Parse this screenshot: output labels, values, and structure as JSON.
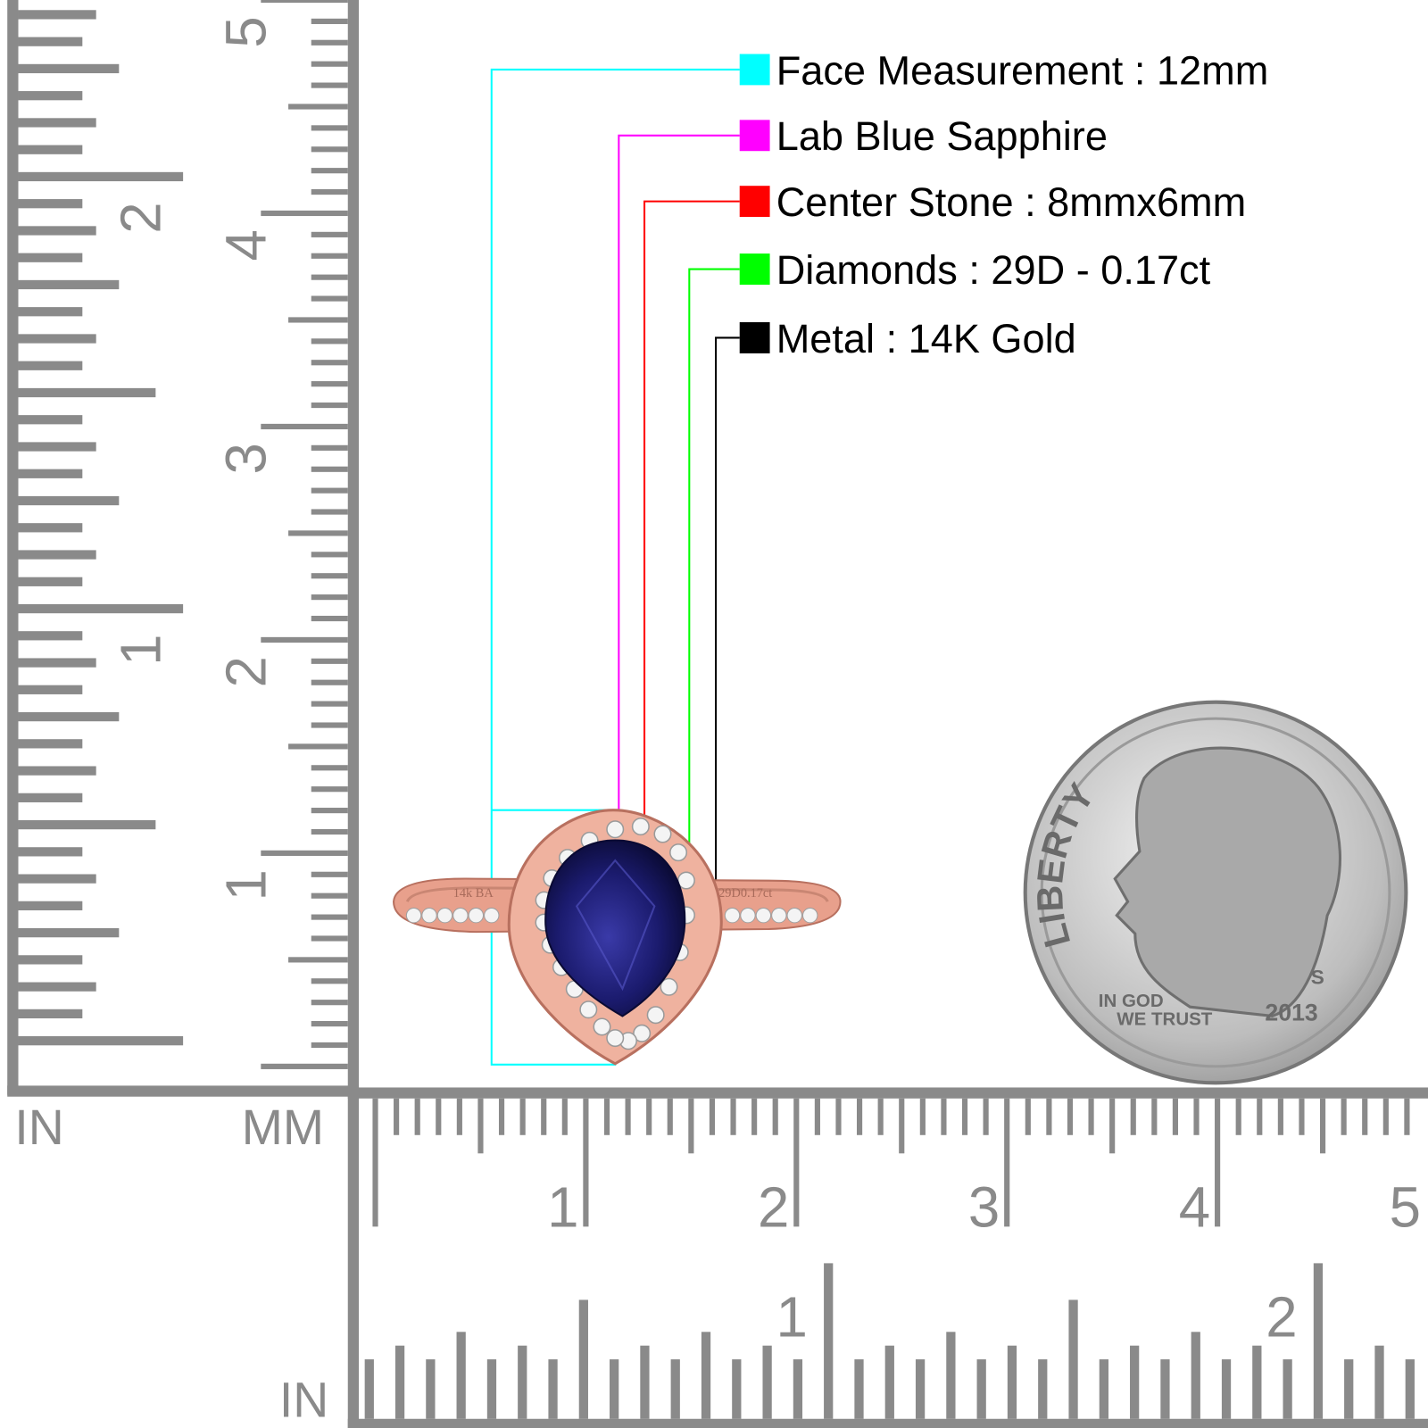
{
  "legend": [
    {
      "label": "Face Measurement : 12mm",
      "color": "#00ffff"
    },
    {
      "label": "Lab Blue Sapphire",
      "color": "#ff00ff"
    },
    {
      "label": "Center Stone : 8mmx6mm",
      "color": "#ff0000"
    },
    {
      "label": "Diamonds : 29D - 0.17ct",
      "color": "#00ff00"
    },
    {
      "label": "Metal : 14K Gold",
      "color": "#000000"
    }
  ],
  "ruler_left": {
    "unit_in": "IN",
    "unit_mm": "MM",
    "cm_labels": [
      "1",
      "2",
      "3",
      "4",
      "5"
    ],
    "in_labels": [
      "1",
      "2"
    ]
  },
  "ruler_bottom": {
    "unit_in": "IN",
    "cm_labels": [
      "1",
      "2",
      "3",
      "4",
      "5"
    ],
    "in_labels": [
      "1",
      "2"
    ]
  },
  "ring_engraving": [
    "14k BA",
    "29D0.17ct"
  ],
  "coin": {
    "legend": "LIBERTY",
    "motto": [
      "IN GOD",
      "WE TRUST"
    ],
    "year": "2013",
    "mint_mark": "S"
  }
}
